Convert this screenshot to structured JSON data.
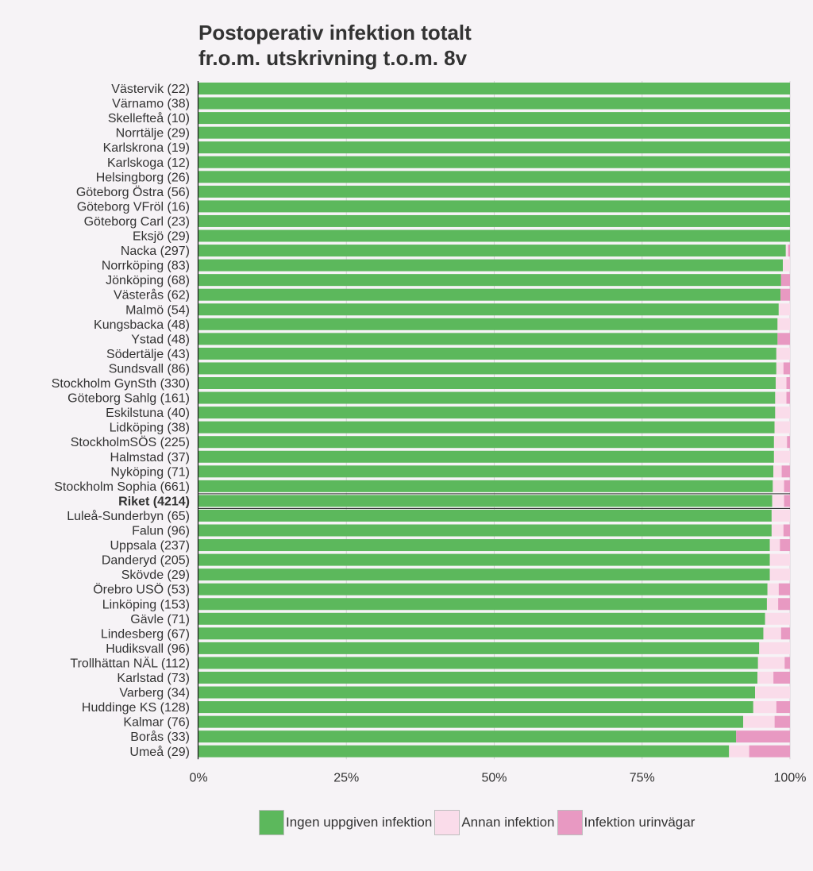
{
  "chart_data": {
    "type": "bar",
    "orientation": "horizontal",
    "stacked": true,
    "title_lines": [
      "Postoperativ infektion totalt",
      "fr.o.m. utskrivning t.o.m. 8v"
    ],
    "xlim": [
      0,
      100
    ],
    "x_ticks": [
      "0%",
      "25%",
      "50%",
      "75%",
      "100%"
    ],
    "grid": true,
    "highlight_category": "Riket (4214)",
    "categories": [
      "Västervik (22)",
      "Värnamo (38)",
      "Skellefteå (10)",
      "Norrtälje (29)",
      "Karlskrona (19)",
      "Karlskoga (12)",
      "Helsingborg (26)",
      "Göteborg Östra (56)",
      "Göteborg VFröl (16)",
      "Göteborg Carl (23)",
      "Eksjö (29)",
      "Nacka (297)",
      "Norrköping (83)",
      "Jönköping (68)",
      "Västerås (62)",
      "Malmö (54)",
      "Kungsbacka (48)",
      "Ystad (48)",
      "Södertälje (43)",
      "Sundsvall (86)",
      "Stockholm GynSth (330)",
      "Göteborg Sahlg (161)",
      "Eskilstuna (40)",
      "Lidköping (38)",
      "StockholmSÖS (225)",
      "Halmstad (37)",
      "Nyköping (71)",
      "Stockholm Sophia (661)",
      "Riket (4214)",
      "Luleå-Sunderbyn (65)",
      "Falun (96)",
      "Uppsala (237)",
      "Danderyd (205)",
      "Skövde (29)",
      "Örebro USÖ (53)",
      "Linköping (153)",
      "Gävle (71)",
      "Lindesberg (67)",
      "Hudiksvall (96)",
      "Trollhättan NÄL (112)",
      "Karlstad (73)",
      "Varberg (34)",
      "Huddinge KS (128)",
      "Kalmar (76)",
      "Borås (33)",
      "Umeå (29)"
    ],
    "series": [
      {
        "name": "Ingen uppgiven infektion",
        "color": "#5cb85c",
        "values": [
          100,
          100,
          100,
          100,
          100,
          100,
          100,
          100,
          100,
          100,
          100,
          99.3,
          98.8,
          98.5,
          98.4,
          98.1,
          97.9,
          97.9,
          97.7,
          97.7,
          97.6,
          97.5,
          97.5,
          97.4,
          97.3,
          97.3,
          97.2,
          97.1,
          97.0,
          96.9,
          96.9,
          96.6,
          96.6,
          96.6,
          96.2,
          96.1,
          95.8,
          95.5,
          94.8,
          94.6,
          94.5,
          94.1,
          93.8,
          92.1,
          90.9,
          89.7
        ]
      },
      {
        "name": "Annan infektion",
        "color": "#fadcea",
        "values": [
          0,
          0,
          0,
          0,
          0,
          0,
          0,
          0,
          0,
          0,
          0,
          0.4,
          1.2,
          0,
          0,
          1.9,
          2.1,
          0,
          2.3,
          1.2,
          1.8,
          1.9,
          2.5,
          2.6,
          2.2,
          2.7,
          1.4,
          1.9,
          2.0,
          3.1,
          2.0,
          1.7,
          3.4,
          3.4,
          1.9,
          1.9,
          4.2,
          3.0,
          5.2,
          4.5,
          2.7,
          5.9,
          3.9,
          5.3,
          0,
          3.4
        ]
      },
      {
        "name": "Infektion urinvägar",
        "color": "#e899c2",
        "values": [
          0,
          0,
          0,
          0,
          0,
          0,
          0,
          0,
          0,
          0,
          0,
          0.3,
          0,
          1.5,
          1.6,
          0,
          0,
          2.1,
          0,
          1.1,
          0.6,
          0.6,
          0,
          0,
          0.5,
          0,
          1.4,
          1.0,
          1.0,
          0,
          1.1,
          1.7,
          0,
          0,
          1.9,
          2.0,
          0,
          1.5,
          0,
          0.9,
          2.8,
          0,
          2.3,
          2.6,
          9.1,
          6.9
        ]
      }
    ]
  },
  "legend": {
    "items": [
      {
        "label": "Ingen uppgiven infektion",
        "color": "#5cb85c"
      },
      {
        "label": "Annan infektion",
        "color": "#fadcea"
      },
      {
        "label": "Infektion urinvägar",
        "color": "#e899c2"
      }
    ]
  }
}
